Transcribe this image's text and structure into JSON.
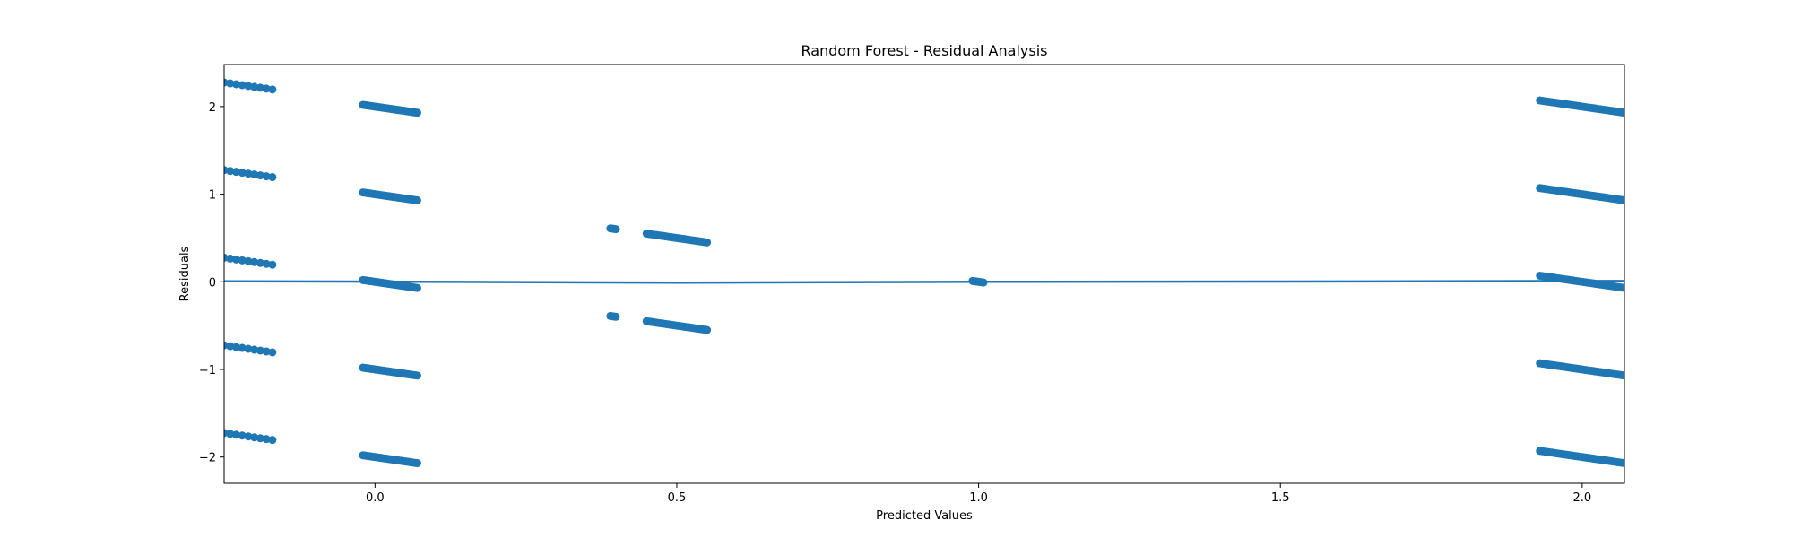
{
  "chart_data": {
    "type": "scatter",
    "title": "Random Forest - Residual Analysis",
    "xlabel": "Predicted Values",
    "ylabel": "Residuals",
    "xlim": [
      -0.25,
      2.07
    ],
    "ylim": [
      -2.3,
      2.48
    ],
    "xticks": [
      0.0,
      0.5,
      1.0,
      1.5,
      2.0
    ],
    "xtick_labels": [
      "0.0",
      "0.5",
      "1.0",
      "1.5",
      "2.0"
    ],
    "yticks": [
      -2,
      -1,
      0,
      1,
      2
    ],
    "ytick_labels": [
      "−2",
      "−1",
      "0",
      "1",
      "2"
    ],
    "grid": false,
    "marker_color": "#1f77b4",
    "line_color": "#1f77b4",
    "clusters": [
      {
        "x_start": -0.25,
        "x_end": -0.17,
        "offsets": [
          2,
          1,
          0,
          -1,
          -2
        ],
        "step": 0.01,
        "intercept": 0.025,
        "slope": -1.0
      },
      {
        "x_start": -0.02,
        "x_end": 0.07,
        "offsets": [
          2,
          1,
          0,
          -1,
          -2
        ],
        "step": 0.003,
        "intercept": 0.0,
        "slope": -1.0
      },
      {
        "x_start": 0.39,
        "x_end": 0.4,
        "offsets": [
          1,
          0
        ],
        "step": 0.003,
        "intercept": 0.0,
        "slope": -1.0
      },
      {
        "x_start": 0.45,
        "x_end": 0.55,
        "offsets": [
          1,
          0
        ],
        "step": 0.004,
        "intercept": 0.0,
        "slope": -1.0
      },
      {
        "x_start": 0.99,
        "x_end": 1.01,
        "offsets": [
          1
        ],
        "step": 0.003,
        "intercept": 0.0,
        "slope": -1.0
      },
      {
        "x_start": 1.93,
        "x_end": 2.07,
        "offsets": [
          4,
          3,
          2,
          1,
          0
        ],
        "step": 0.004,
        "intercept": 0.0,
        "slope": -1.0
      }
    ],
    "trend_line": {
      "x": [
        -0.25,
        0.0,
        0.5,
        1.0,
        1.5,
        1.93,
        2.07
      ],
      "y": [
        0.005,
        0.002,
        -0.01,
        0.0,
        0.003,
        0.008,
        0.01
      ]
    }
  }
}
